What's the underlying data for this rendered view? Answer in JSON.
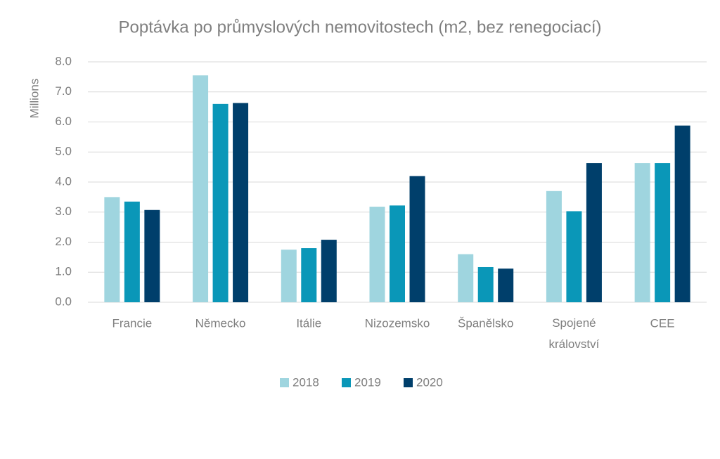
{
  "chart_data": {
    "type": "bar",
    "title": "Poptávka po průmyslových nemovitostech (m2, bez renegociací)",
    "y_label": "Millions",
    "categories": [
      "Francie",
      "Německo",
      "Itálie",
      "Nizozemsko",
      "Španělsko",
      "Spojené království",
      "CEE"
    ],
    "series": [
      {
        "name": "2018",
        "color": "#9fd5df",
        "values": [
          3.5,
          7.55,
          1.75,
          3.18,
          1.6,
          3.7,
          4.63
        ]
      },
      {
        "name": "2019",
        "color": "#0a97b8",
        "values": [
          3.35,
          6.6,
          1.8,
          3.22,
          1.17,
          3.03,
          4.63
        ]
      },
      {
        "name": "2020",
        "color": "#003f6b",
        "values": [
          3.07,
          6.63,
          2.08,
          4.2,
          1.12,
          4.63,
          5.88
        ]
      }
    ],
    "ylim": [
      0,
      8
    ],
    "yticks": [
      {
        "value": 0,
        "label": "0.0"
      },
      {
        "value": 1,
        "label": "1.0"
      },
      {
        "value": 2,
        "label": "2.0"
      },
      {
        "value": 3,
        "label": "3.0"
      },
      {
        "value": 4,
        "label": "4.0"
      },
      {
        "value": 5,
        "label": "5.0"
      },
      {
        "value": 6,
        "label": "6.0"
      },
      {
        "value": 7,
        "label": "7.0"
      },
      {
        "value": 8,
        "label": "8.0"
      }
    ],
    "grid": true,
    "legend": "bottom"
  }
}
